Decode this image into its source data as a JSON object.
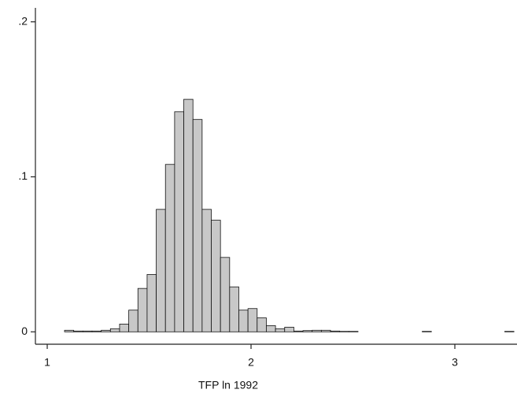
{
  "chart_data": {
    "type": "histogram",
    "x_label": "TFP ln 1992",
    "bins": [
      1.085,
      1.13,
      1.175,
      1.22,
      1.265,
      1.31,
      1.355,
      1.4,
      1.445,
      1.49,
      1.535,
      1.58,
      1.625,
      1.67,
      1.715,
      1.76,
      1.805,
      1.85,
      1.895,
      1.94,
      1.985,
      2.03,
      2.075,
      2.12,
      2.165,
      2.21,
      2.255,
      2.3,
      2.345,
      2.39,
      2.435,
      2.48,
      2.525,
      2.57,
      2.615,
      2.66,
      2.705,
      2.75,
      2.795,
      2.84,
      2.885,
      2.93,
      2.975,
      3.02,
      3.065,
      3.11,
      3.155,
      3.2,
      3.245,
      3.29
    ],
    "values": [
      0.001,
      0.0005,
      0.0005,
      0.0005,
      0.001,
      0.002,
      0.005,
      0.014,
      0.028,
      0.037,
      0.079,
      0.108,
      0.142,
      0.15,
      0.137,
      0.079,
      0.072,
      0.048,
      0.029,
      0.014,
      0.015,
      0.009,
      0.004,
      0.002,
      0.003,
      0.0005,
      0.0008,
      0.001,
      0.001,
      0.0005,
      0.0003,
      0.0003,
      0,
      0,
      0,
      0,
      0,
      0,
      0,
      0.0003,
      0,
      0,
      0,
      0,
      0,
      0,
      0,
      0,
      0.0003
    ],
    "color": "#c8c8c8",
    "xlim": [
      0.942,
      3.305
    ],
    "xticks": [
      1,
      2,
      3
    ],
    "ylim": [
      -0.008,
      0.209
    ],
    "yticks": [
      0,
      {
        "value": 0.1,
        "label": ".1"
      },
      {
        "value": 0.2,
        "label": ".2"
      }
    ]
  }
}
